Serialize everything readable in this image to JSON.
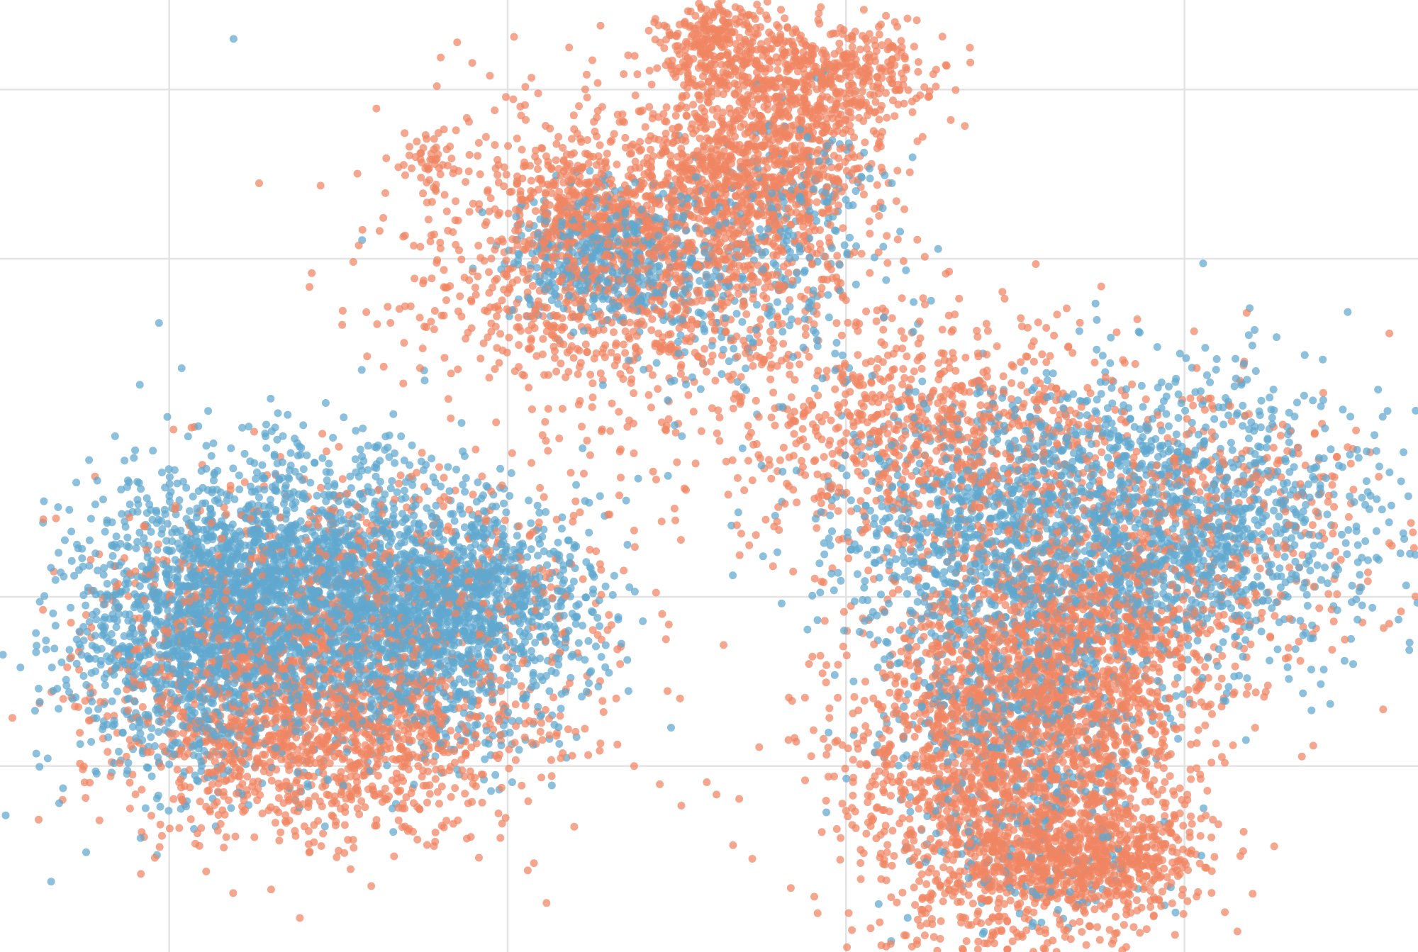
{
  "chart_data": {
    "type": "scatter",
    "title": "",
    "xlabel": "",
    "ylabel": "",
    "grid": true,
    "legend": "none",
    "xlim": [
      0,
      8.38
    ],
    "ylim": [
      -0.1,
      5.53
    ],
    "grid_x": [
      1,
      3,
      5,
      7
    ],
    "grid_y": [
      1,
      2,
      4,
      5
    ],
    "marker_opacity": 0.72,
    "series": [
      {
        "color": "#f08562",
        "clusters": [
          {
            "cx": 3.7,
            "cy": 4.0,
            "sx": 0.6,
            "sy": 0.45,
            "n": 1500
          },
          {
            "cx": 4.5,
            "cy": 4.6,
            "sx": 0.35,
            "sy": 0.3,
            "n": 900
          },
          {
            "cx": 4.25,
            "cy": 5.3,
            "sx": 0.16,
            "sy": 0.14,
            "n": 280
          },
          {
            "cx": 4.95,
            "cy": 5.1,
            "sx": 0.28,
            "sy": 0.16,
            "n": 380
          },
          {
            "cx": 3.45,
            "cy": 4.3,
            "sx": 0.2,
            "sy": 0.16,
            "n": 160
          },
          {
            "cx": 6.0,
            "cy": 0.85,
            "sx": 0.5,
            "sy": 0.5,
            "n": 2100
          },
          {
            "cx": 6.3,
            "cy": 1.7,
            "sx": 0.5,
            "sy": 0.35,
            "n": 900
          },
          {
            "cx": 6.5,
            "cy": 0.45,
            "sx": 0.32,
            "sy": 0.14,
            "n": 450
          },
          {
            "cx": 6.7,
            "cy": 2.4,
            "sx": 0.7,
            "sy": 0.45,
            "n": 750
          },
          {
            "cx": 5.4,
            "cy": 3.0,
            "sx": 0.55,
            "sy": 0.35,
            "n": 750
          },
          {
            "cx": 2.0,
            "cy": 1.2,
            "sx": 0.6,
            "sy": 0.3,
            "n": 1200
          },
          {
            "cx": 1.4,
            "cy": 1.7,
            "sx": 0.5,
            "sy": 0.45,
            "n": 550
          },
          {
            "cx": 2.5,
            "cy": 2.1,
            "sx": 0.6,
            "sy": 0.35,
            "n": 450
          },
          {
            "cx": 2.55,
            "cy": 4.6,
            "sx": 0.08,
            "sy": 0.1,
            "n": 45
          }
        ]
      },
      {
        "color": "#5fa8cf",
        "clusters": [
          {
            "cx": 1.8,
            "cy": 2.05,
            "sx": 0.55,
            "sy": 0.4,
            "n": 2100
          },
          {
            "cx": 1.15,
            "cy": 1.7,
            "sx": 0.38,
            "sy": 0.42,
            "n": 1000
          },
          {
            "cx": 2.6,
            "cy": 1.75,
            "sx": 0.45,
            "sy": 0.35,
            "n": 800
          },
          {
            "cx": 2.8,
            "cy": 2.05,
            "sx": 0.35,
            "sy": 0.22,
            "n": 450
          },
          {
            "cx": 6.9,
            "cy": 2.4,
            "sx": 0.6,
            "sy": 0.45,
            "n": 1500
          },
          {
            "cx": 5.8,
            "cy": 2.45,
            "sx": 0.5,
            "sy": 0.4,
            "n": 750
          },
          {
            "cx": 6.0,
            "cy": 1.4,
            "sx": 0.4,
            "sy": 0.35,
            "n": 450
          },
          {
            "cx": 3.55,
            "cy": 4.0,
            "sx": 0.28,
            "sy": 0.2,
            "n": 450
          },
          {
            "cx": 4.35,
            "cy": 3.95,
            "sx": 0.4,
            "sy": 0.35,
            "n": 280
          },
          {
            "cx": 4.8,
            "cy": 4.4,
            "sx": 0.2,
            "sy": 0.25,
            "n": 90
          },
          {
            "cx": 6.1,
            "cy": 0.7,
            "sx": 0.35,
            "sy": 0.4,
            "n": 220
          }
        ]
      }
    ],
    "points": [
      {
        "x": 1.38,
        "y": 5.3,
        "color": "#5fa8cf"
      },
      {
        "x": 0.94,
        "y": 3.62,
        "color": "#5fa8cf"
      },
      {
        "x": 2.14,
        "y": 4.11,
        "color": "#5fa8cf"
      },
      {
        "x": 0.68,
        "y": 2.95,
        "color": "#5fa8cf"
      },
      {
        "x": 1.23,
        "y": 3.1,
        "color": "#5fa8cf"
      },
      {
        "x": 0.35,
        "y": 0.78,
        "color": "#5fa8cf"
      },
      {
        "x": 2.95,
        "y": 0.86,
        "color": "#5fa8cf"
      },
      {
        "x": 3.0,
        "y": 1.48,
        "color": "#5fa8cf"
      },
      {
        "x": 3.7,
        "y": 2.57,
        "color": "#5fa8cf"
      },
      {
        "x": 4.03,
        "y": 2.95,
        "color": "#5fa8cf"
      },
      {
        "x": 8.2,
        "y": 3.1,
        "color": "#5fa8cf"
      },
      {
        "x": 8.02,
        "y": 2.87,
        "color": "#5fa8cf"
      },
      {
        "x": 8.05,
        "y": 1.95,
        "color": "#5fa8cf"
      },
      {
        "x": 7.25,
        "y": 1.43,
        "color": "#5fa8cf"
      },
      {
        "x": 7.7,
        "y": 1.43,
        "color": "#5fa8cf"
      },
      {
        "x": 7.1,
        "y": 0.47,
        "color": "#5fa8cf"
      },
      {
        "x": 5.42,
        "y": 1.0,
        "color": "#5fa8cf"
      },
      {
        "x": 6.8,
        "y": 0.79,
        "color": "#f08562"
      },
      {
        "x": 3.66,
        "y": 2.6,
        "color": "#f08562"
      },
      {
        "x": 7.55,
        "y": 1.97,
        "color": "#f08562"
      },
      {
        "x": 0.37,
        "y": 0.8,
        "color": "#f08562"
      }
    ]
  }
}
